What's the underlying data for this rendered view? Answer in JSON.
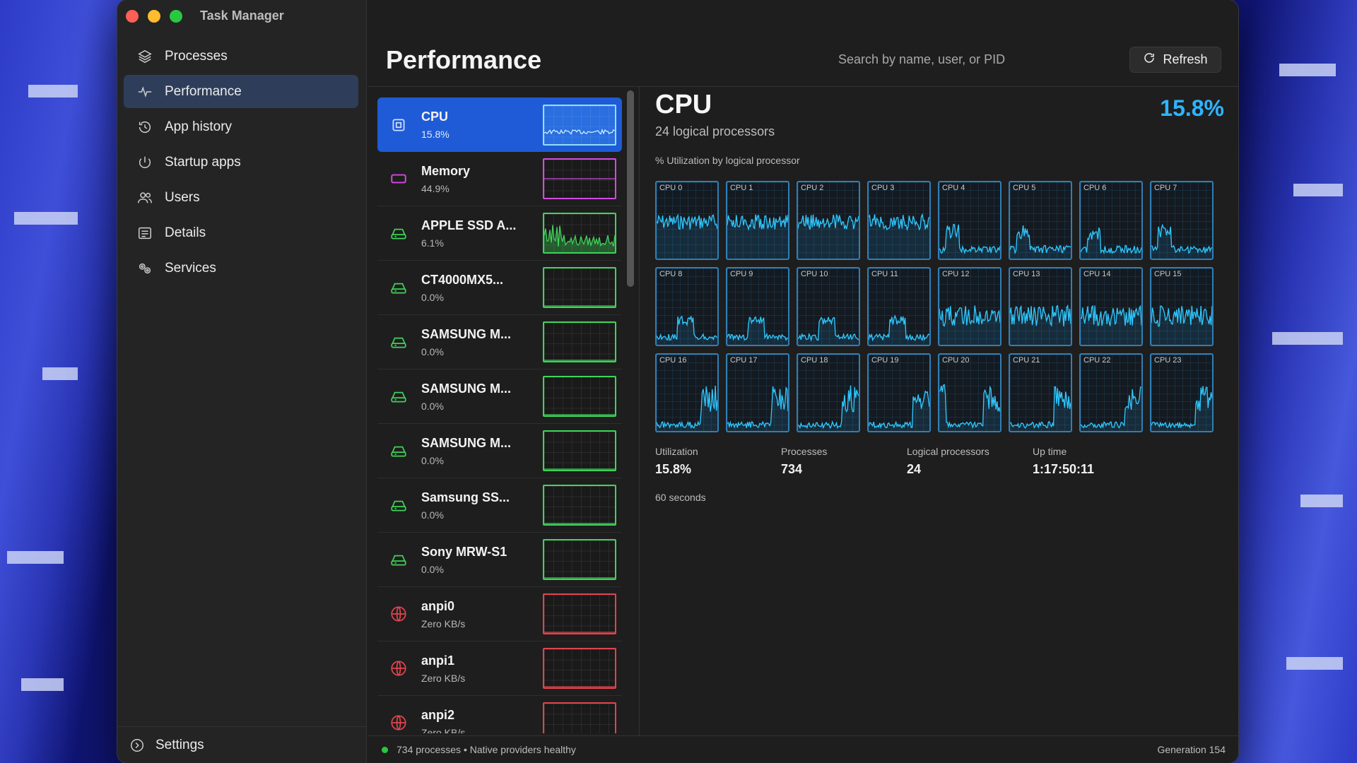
{
  "window": {
    "title": "Task Manager"
  },
  "sidebar": {
    "items": [
      {
        "label": "Processes",
        "icon": "layers-icon",
        "active": false
      },
      {
        "label": "Performance",
        "icon": "pulse-icon",
        "active": true
      },
      {
        "label": "App history",
        "icon": "history-icon",
        "active": false
      },
      {
        "label": "Startup apps",
        "icon": "power-icon",
        "active": false
      },
      {
        "label": "Users",
        "icon": "users-icon",
        "active": false
      },
      {
        "label": "Details",
        "icon": "details-icon",
        "active": false
      },
      {
        "label": "Services",
        "icon": "services-icon",
        "active": false
      }
    ],
    "settings_label": "Settings"
  },
  "header": {
    "title": "Performance",
    "search_placeholder": "Search by name, user, or PID",
    "refresh_label": "Refresh"
  },
  "devices": [
    {
      "name": "CPU",
      "value": "15.8%",
      "kind": "cpu",
      "color": "#8fe0ff"
    },
    {
      "name": "Memory",
      "value": "44.9%",
      "kind": "memory",
      "color": "#d24be0"
    },
    {
      "name": "APPLE SSD A...",
      "value": "6.1%",
      "kind": "disk",
      "color": "#3fd35a"
    },
    {
      "name": "CT4000MX5...",
      "value": "0.0%",
      "kind": "disk",
      "color": "#3fd35a"
    },
    {
      "name": "SAMSUNG M...",
      "value": "0.0%",
      "kind": "disk",
      "color": "#3fd35a"
    },
    {
      "name": "SAMSUNG M...",
      "value": "0.0%",
      "kind": "disk",
      "color": "#3fd35a"
    },
    {
      "name": "SAMSUNG M...",
      "value": "0.0%",
      "kind": "disk",
      "color": "#3fd35a"
    },
    {
      "name": "Samsung SS...",
      "value": "0.0%",
      "kind": "disk",
      "color": "#3fd35a"
    },
    {
      "name": "Sony MRW-S1",
      "value": "0.0%",
      "kind": "disk",
      "color": "#3fd35a"
    },
    {
      "name": "anpi0",
      "value": "Zero KB/s",
      "kind": "network",
      "color": "#e0444e"
    },
    {
      "name": "anpi1",
      "value": "Zero KB/s",
      "kind": "network",
      "color": "#e0444e"
    },
    {
      "name": "anpi2",
      "value": "Zero KB/s",
      "kind": "network",
      "color": "#e0444e"
    }
  ],
  "detail": {
    "title": "CPU",
    "subtitle": "24 logical processors",
    "percent": "15.8%",
    "graph_label": "% Utilization by logical processor",
    "cores": [
      "CPU 0",
      "CPU 1",
      "CPU 2",
      "CPU 3",
      "CPU 4",
      "CPU 5",
      "CPU 6",
      "CPU 7",
      "CPU 8",
      "CPU 9",
      "CPU 10",
      "CPU 11",
      "CPU 12",
      "CPU 13",
      "CPU 14",
      "CPU 15",
      "CPU 16",
      "CPU 17",
      "CPU 18",
      "CPU 19",
      "CPU 20",
      "CPU 21",
      "CPU 22",
      "CPU 23"
    ],
    "stats": [
      {
        "label": "Utilization",
        "value": "15.8%"
      },
      {
        "label": "Processes",
        "value": "734"
      },
      {
        "label": "Logical processors",
        "value": "24"
      },
      {
        "label": "Up time",
        "value": "1:17:50:11"
      }
    ],
    "window_label": "60 seconds"
  },
  "status": {
    "text": "734 processes • Native providers healthy",
    "generation": "Generation 154"
  },
  "colors": {
    "accent": "#1f5bd6",
    "cpu_line": "#2fb4ff",
    "percent": "#2fb4ff"
  }
}
